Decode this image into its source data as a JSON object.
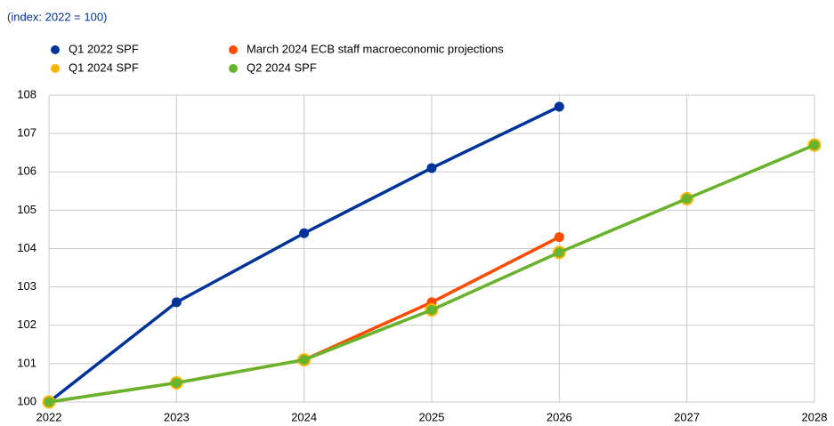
{
  "chart_data": {
    "type": "line",
    "subtitle": "(index: 2022 = 100)",
    "x": [
      2022,
      2023,
      2024,
      2025,
      2026,
      2027,
      2028
    ],
    "xlim": [
      2022,
      2028
    ],
    "xticks": [
      2022,
      2023,
      2024,
      2025,
      2026,
      2027,
      2028
    ],
    "ylim": [
      100,
      108
    ],
    "yticks": [
      100,
      101,
      102,
      103,
      104,
      105,
      106,
      107,
      108
    ],
    "grid": true,
    "series": [
      {
        "name": "Q1 2022 SPF",
        "color": "#003399",
        "values": [
          100,
          102.6,
          104.4,
          106.1,
          107.7,
          null,
          null
        ]
      },
      {
        "name": "March 2024 ECB staff macroeconomic projections",
        "color": "#ff4b00",
        "values": [
          100,
          100.5,
          101.1,
          102.6,
          104.3,
          null,
          null
        ]
      },
      {
        "name": "Q1 2024 SPF",
        "color": "#ffb400",
        "values": [
          100,
          100.5,
          101.1,
          102.4,
          103.9,
          105.3,
          106.7
        ]
      },
      {
        "name": "Q2 2024 SPF",
        "color": "#65b32e",
        "values": [
          100,
          100.5,
          101.1,
          102.4,
          103.9,
          105.3,
          106.7
        ]
      }
    ]
  }
}
